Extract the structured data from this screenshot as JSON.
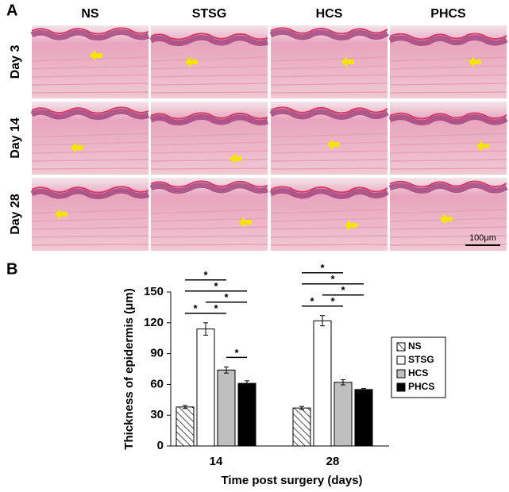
{
  "panel_a": {
    "label": "A",
    "columns": [
      "NS",
      "STSG",
      "HCS",
      "PHCS"
    ],
    "rows": [
      "Day 3",
      "Day 14",
      "Day 28"
    ],
    "scale_bar": "100μm"
  },
  "chart_data": {
    "type": "bar",
    "panel_label": "B",
    "y_label": "Thickness of epidermis (μm)",
    "x_label": "Time post surgery (days)",
    "categories": [
      "14",
      "28"
    ],
    "series": [
      {
        "name": "NS",
        "color": "#ffffff",
        "pattern": "hatch",
        "values": [
          38,
          37
        ],
        "errors": [
          1.5,
          1.5
        ]
      },
      {
        "name": "STSG",
        "color": "#ffffff",
        "values": [
          114,
          122
        ],
        "errors": [
          6,
          5
        ]
      },
      {
        "name": "HCS",
        "color": "#bfbfbf",
        "values": [
          74,
          62
        ],
        "errors": [
          3,
          2.5
        ]
      },
      {
        "name": "PHCS",
        "color": "#000000",
        "values": [
          61,
          55
        ],
        "errors": [
          2.5,
          1
        ]
      }
    ],
    "ylim": [
      0,
      150
    ],
    "yticks": [
      0,
      30,
      60,
      90,
      120,
      150
    ],
    "legend": "right",
    "significance": [
      {
        "category": "14",
        "between": [
          "HCS",
          "PHCS"
        ],
        "label": "*"
      },
      {
        "category": "14",
        "between": [
          "NS",
          "STSG"
        ],
        "label": "*"
      },
      {
        "category": "14",
        "between": [
          "STSG",
          "HCS"
        ],
        "label": "*"
      },
      {
        "category": "14",
        "between": [
          "STSG",
          "PHCS"
        ],
        "label": "*"
      },
      {
        "category": "14",
        "between": [
          "NS",
          "PHCS"
        ],
        "label": "*"
      },
      {
        "category": "14",
        "between": [
          "NS",
          "HCS"
        ],
        "label": "*"
      },
      {
        "category": "28",
        "between": [
          "NS",
          "STSG"
        ],
        "label": "*"
      },
      {
        "category": "28",
        "between": [
          "STSG",
          "HCS"
        ],
        "label": "*"
      },
      {
        "category": "28",
        "between": [
          "STSG",
          "PHCS"
        ],
        "label": "*"
      },
      {
        "category": "28",
        "between": [
          "NS",
          "PHCS"
        ],
        "label": "*"
      },
      {
        "category": "28",
        "between": [
          "NS",
          "HCS"
        ],
        "label": "*"
      }
    ]
  }
}
